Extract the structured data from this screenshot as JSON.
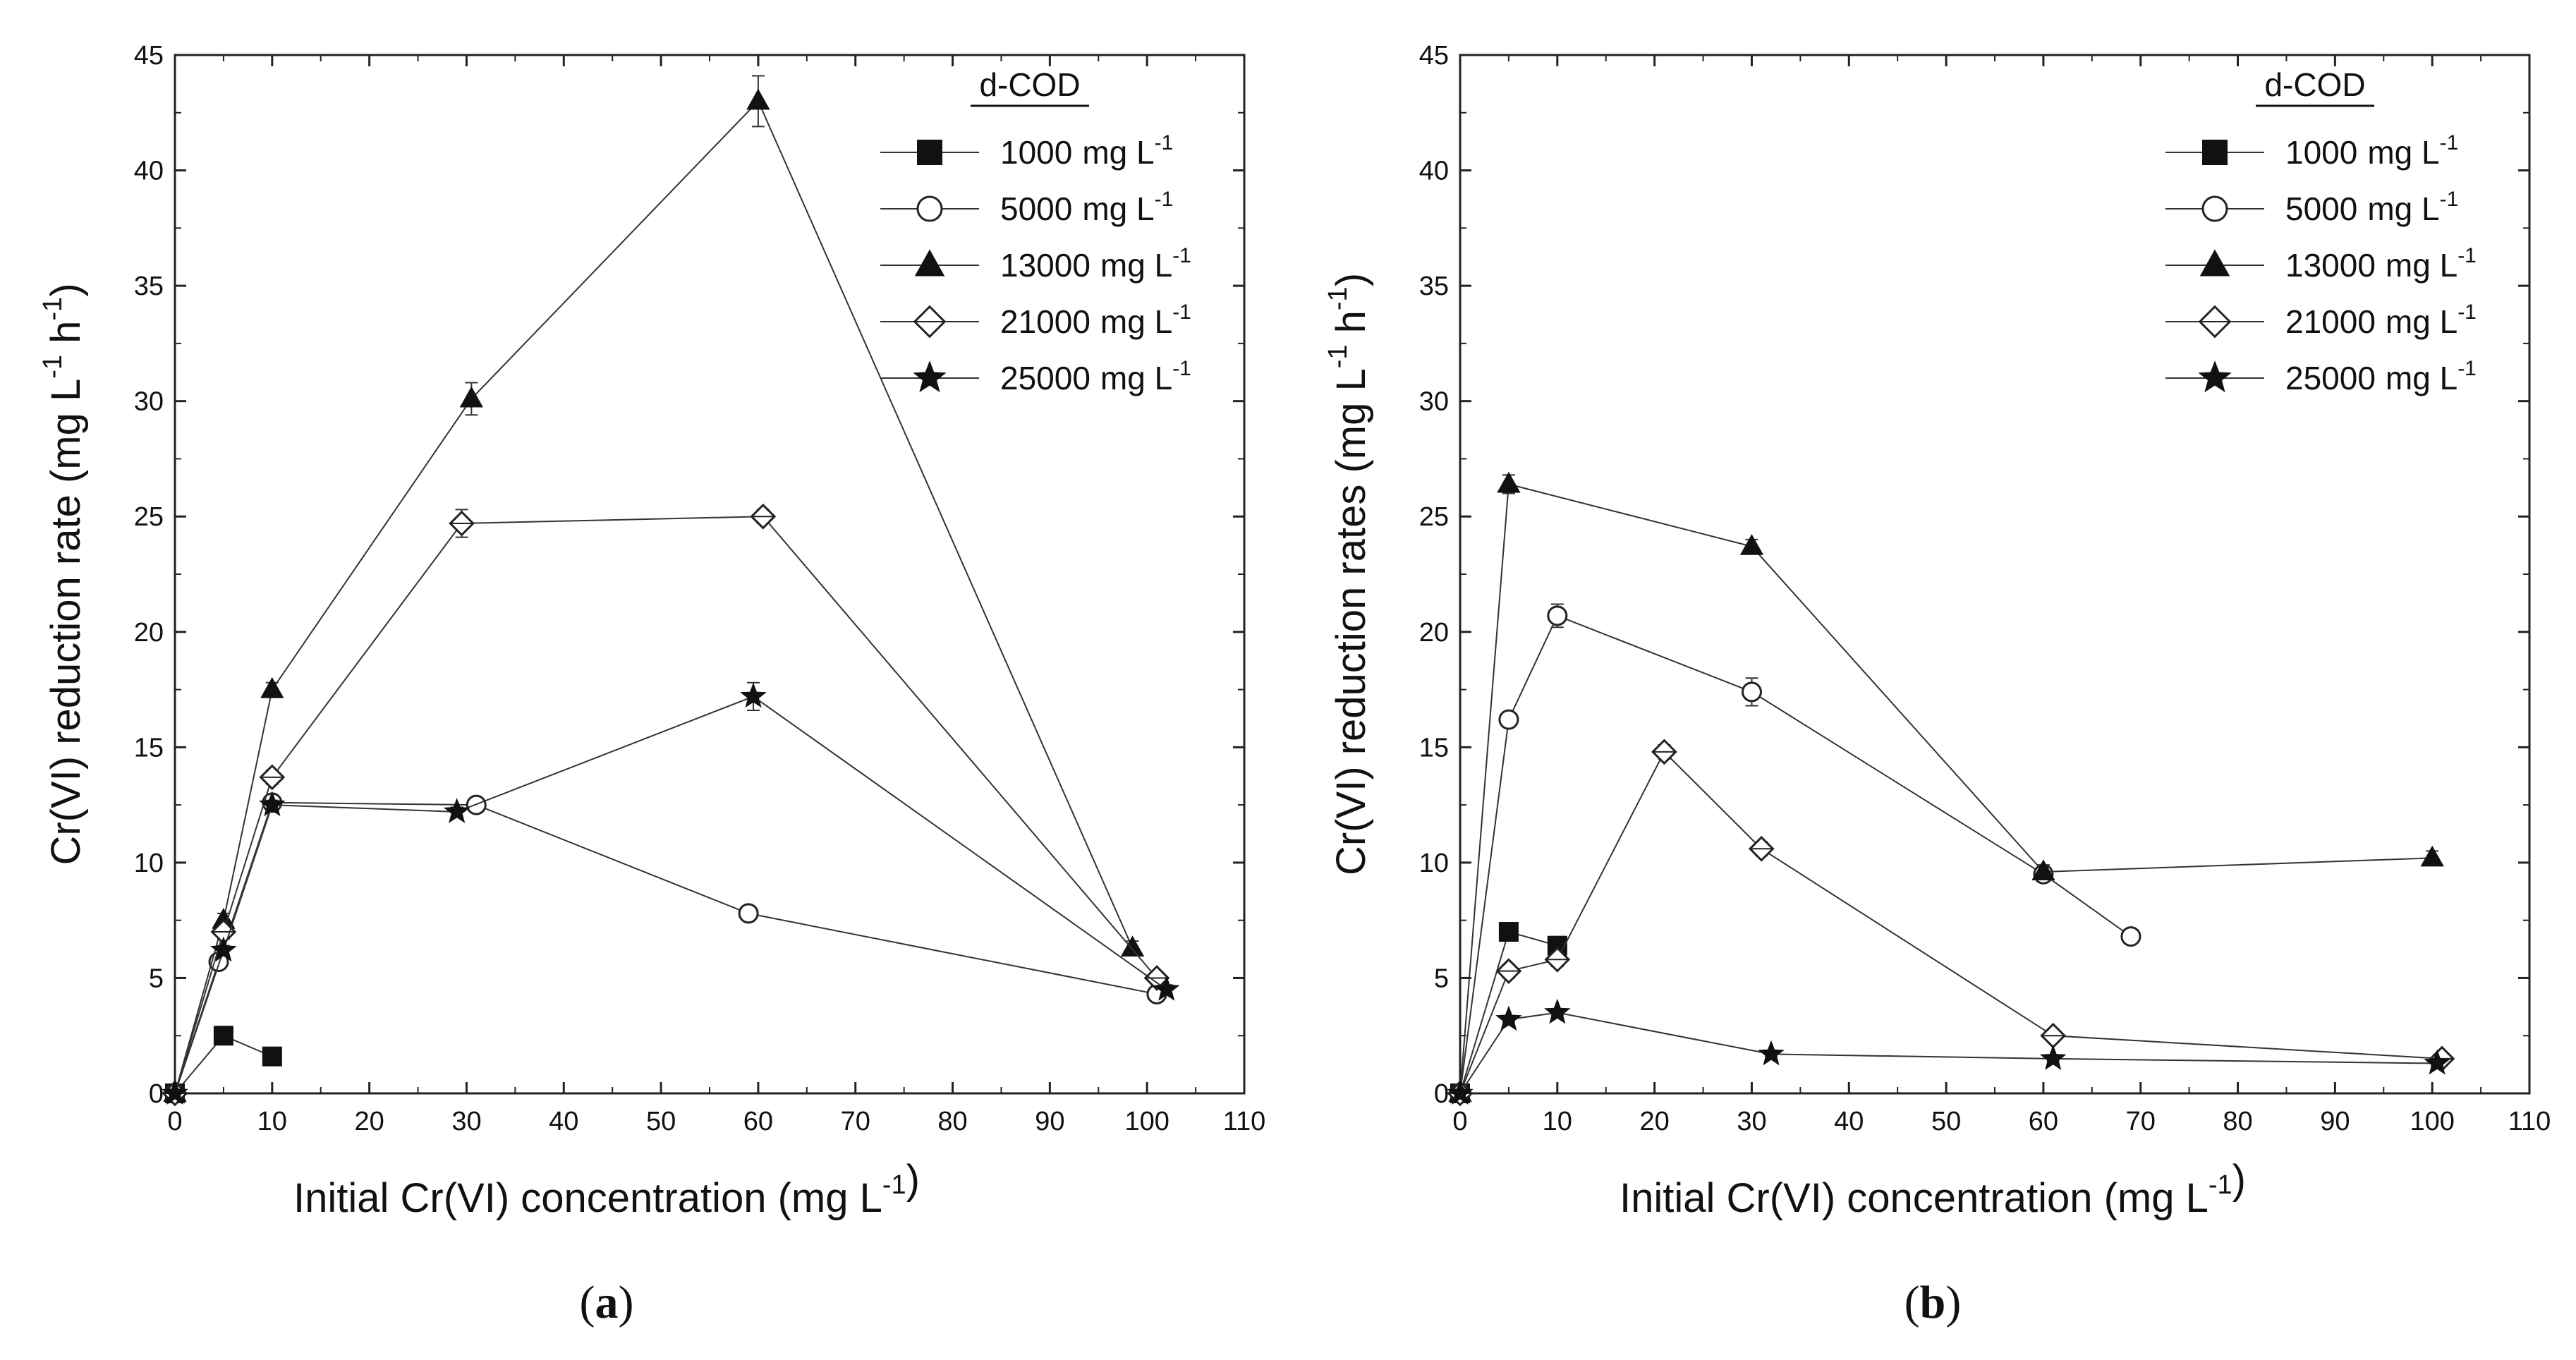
{
  "legend_title": "d-COD",
  "legend_unit": "mg L",
  "legend_exp": "-1",
  "chart_data": [
    {
      "type": "line",
      "panel_label": "a",
      "xlabel": "Initial Cr(VI) concentration (mg L",
      "xlabel_exp": "-1",
      "ylabel": "Cr(VI) reduction rate (mg L",
      "ylabel_exp1": "-1",
      "ylabel_mid": " h",
      "ylabel_exp2": "-1",
      "xlim": [
        0,
        110
      ],
      "ylim": [
        0,
        45
      ],
      "xticks": [
        0,
        10,
        20,
        30,
        40,
        50,
        60,
        70,
        80,
        90,
        100,
        110
      ],
      "yticks": [
        0,
        5,
        10,
        15,
        20,
        25,
        30,
        35,
        40,
        45
      ],
      "legend_position": "top-right",
      "series": [
        {
          "name": "1000",
          "marker": "square",
          "x": [
            0,
            5,
            10
          ],
          "y": [
            0,
            2.5,
            1.6
          ]
        },
        {
          "name": "5000",
          "marker": "circle",
          "x": [
            0,
            4.5,
            10,
            31,
            59,
            101
          ],
          "y": [
            0,
            5.7,
            12.6,
            12.5,
            7.8,
            4.3
          ],
          "err": [
            0,
            0.3,
            0.2,
            0.2,
            0.3,
            0.2
          ]
        },
        {
          "name": "13000",
          "marker": "triangle",
          "x": [
            0,
            5,
            10,
            30.5,
            60,
            98.5
          ],
          "y": [
            0,
            7.5,
            17.5,
            30.1,
            43,
            6.3
          ],
          "err": [
            0,
            0.3,
            0.3,
            0.7,
            1.1,
            0.3
          ]
        },
        {
          "name": "21000",
          "marker": "diamond",
          "x": [
            0,
            5,
            10,
            29.5,
            60.5,
            101
          ],
          "y": [
            0,
            7,
            13.7,
            24.7,
            25,
            5
          ],
          "err": [
            0,
            0.3,
            0.3,
            0.6,
            0.3,
            0.2
          ]
        },
        {
          "name": "25000",
          "marker": "star",
          "x": [
            0,
            5,
            10,
            29,
            59.5,
            102
          ],
          "y": [
            0,
            6.2,
            12.5,
            12.2,
            17.2,
            4.5
          ],
          "err": [
            0,
            0.2,
            0.2,
            0.2,
            0.6,
            0.2
          ]
        }
      ]
    },
    {
      "type": "line",
      "panel_label": "b",
      "xlabel": "Initial Cr(VI) concentration (mg L",
      "xlabel_exp": "-1",
      "ylabel": "Cr(VI) reduction rates (mg L",
      "ylabel_exp1": "-1",
      "ylabel_mid": " h",
      "ylabel_exp2": "-1",
      "xlim": [
        0,
        110
      ],
      "ylim": [
        0,
        45
      ],
      "xticks": [
        0,
        10,
        20,
        30,
        40,
        50,
        60,
        70,
        80,
        90,
        100,
        110
      ],
      "yticks": [
        0,
        5,
        10,
        15,
        20,
        25,
        30,
        35,
        40,
        45
      ],
      "legend_position": "top-right",
      "series": [
        {
          "name": "1000",
          "marker": "square",
          "x": [
            0,
            5,
            10
          ],
          "y": [
            0,
            7,
            6.4
          ]
        },
        {
          "name": "5000",
          "marker": "circle",
          "x": [
            0,
            5,
            10,
            30,
            60,
            69
          ],
          "y": [
            0,
            16.2,
            20.7,
            17.4,
            9.5,
            6.8
          ],
          "err": [
            0,
            0.2,
            0.5,
            0.6,
            0.3,
            0.2
          ]
        },
        {
          "name": "13000",
          "marker": "triangle",
          "x": [
            0,
            5,
            30,
            60,
            100
          ],
          "y": [
            0,
            26.4,
            23.7,
            9.6,
            10.2
          ],
          "err": [
            0,
            0.4,
            0.3,
            0.3,
            0.3
          ]
        },
        {
          "name": "21000",
          "marker": "diamond",
          "x": [
            0,
            5,
            10,
            21,
            31,
            61,
            101
          ],
          "y": [
            0,
            5.3,
            5.8,
            14.8,
            10.6,
            2.5,
            1.5
          ],
          "err": [
            0,
            0.3,
            0.3,
            0.3,
            0.3,
            0.2,
            0.1
          ]
        },
        {
          "name": "25000",
          "marker": "star",
          "x": [
            0,
            5,
            10,
            32,
            61,
            100.5
          ],
          "y": [
            0,
            3.2,
            3.5,
            1.7,
            1.5,
            1.3
          ],
          "err": [
            0,
            0.1,
            0.1,
            0.1,
            0.1,
            0.1
          ]
        }
      ]
    }
  ]
}
